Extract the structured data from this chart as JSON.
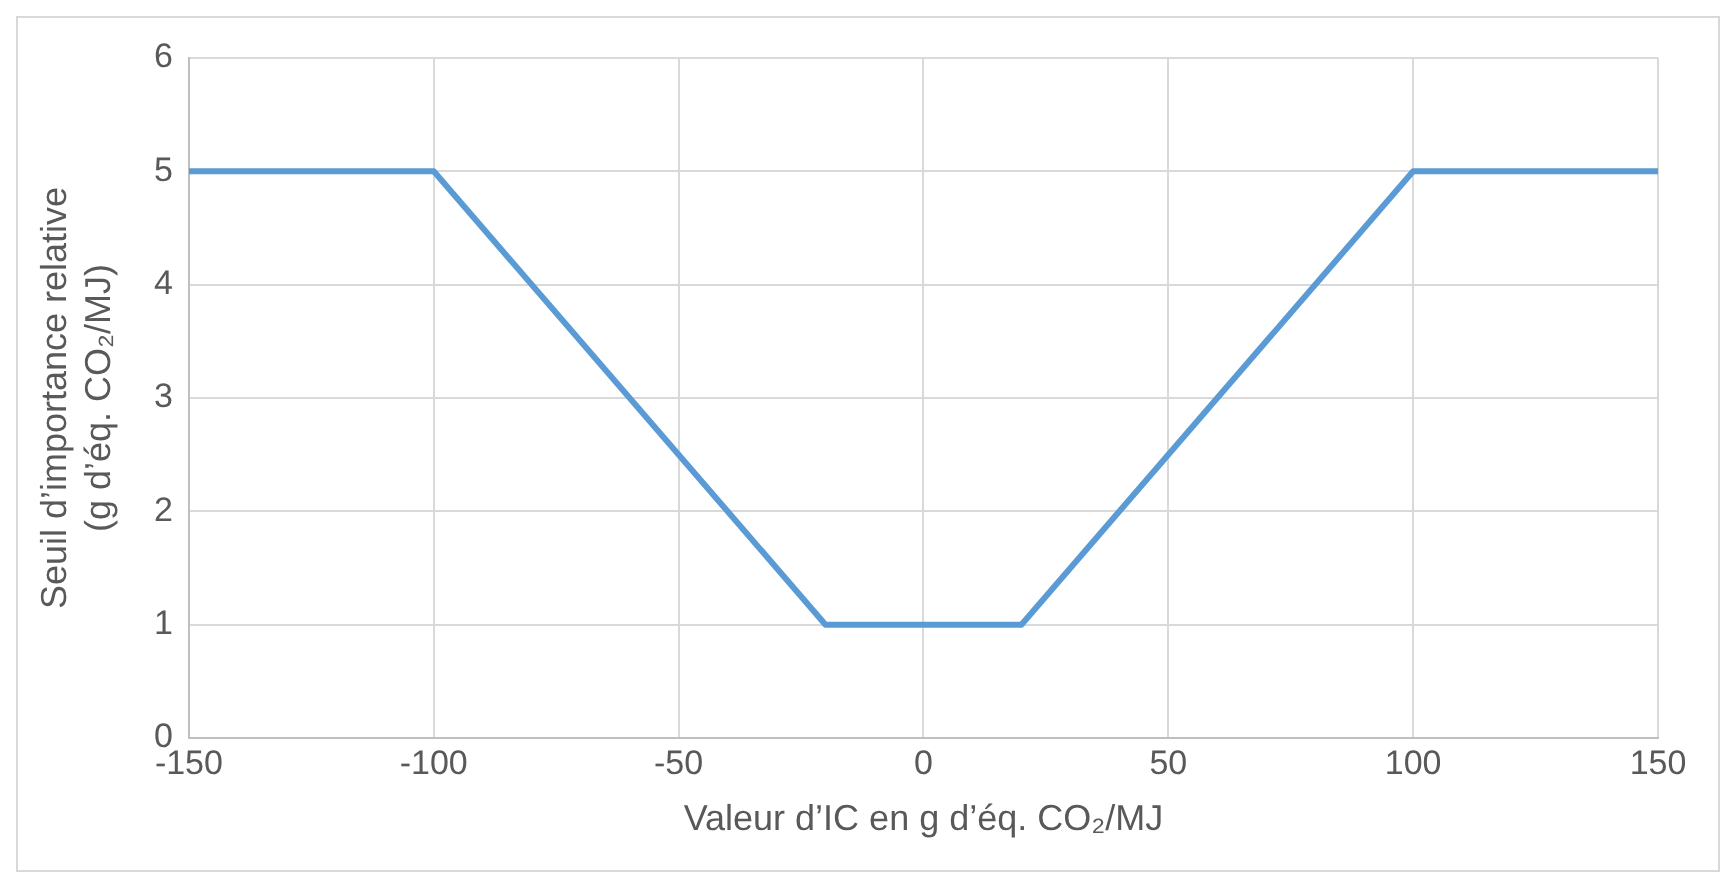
{
  "chart_data": {
    "type": "line",
    "xlabel": "Valeur d’IC en g d’éq. CO₂/MJ",
    "ylabel": "Seuil d’importance relative\n(g d’éq. CO₂/MJ)",
    "x": [
      -150,
      -100,
      -20,
      20,
      100,
      150
    ],
    "series": [
      {
        "color": "#5b9bd5",
        "values": [
          5,
          5,
          1,
          1,
          5,
          5
        ]
      }
    ],
    "xlim": [
      -150,
      150
    ],
    "xticks": [
      -150,
      -100,
      -50,
      0,
      50,
      100,
      150
    ],
    "ylim": [
      0,
      6
    ],
    "yticks": [
      0,
      1,
      2,
      3,
      4,
      5,
      6
    ],
    "grid": true,
    "marker": "none",
    "line_style": "solid"
  }
}
